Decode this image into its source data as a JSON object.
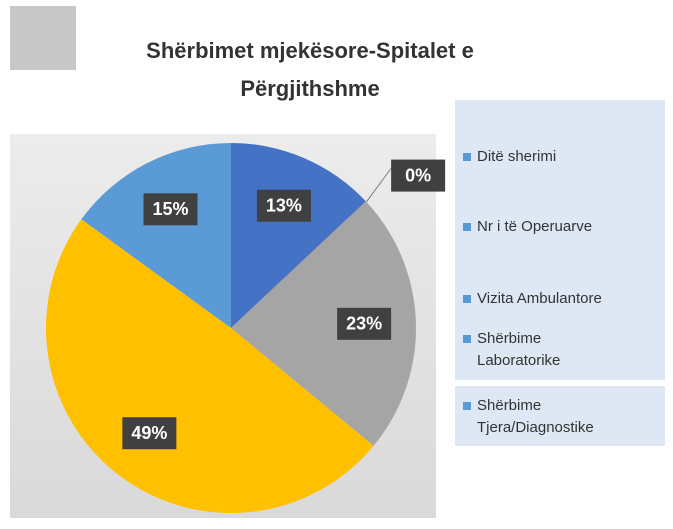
{
  "chart_data": {
    "type": "pie",
    "title": "Shërbimet mjekësore-Spitalet e Përgjithshme",
    "categories": [
      "Ditë sherimi",
      "Nr i të Operuarve",
      "Vizita Ambulantore",
      "Shërbime Laboratorike",
      "Shërbime Tjera/Diagnostike"
    ],
    "values": [
      13,
      0,
      23,
      49,
      15
    ],
    "value_labels": [
      "13%",
      "0%",
      "23%",
      "49%",
      "15%"
    ],
    "colors": [
      "#4472c4",
      "#ed7d31",
      "#a5a5a5",
      "#ffc000",
      "#5b9bd5"
    ],
    "legend_color": "#5b9bd5",
    "legend": "right"
  }
}
